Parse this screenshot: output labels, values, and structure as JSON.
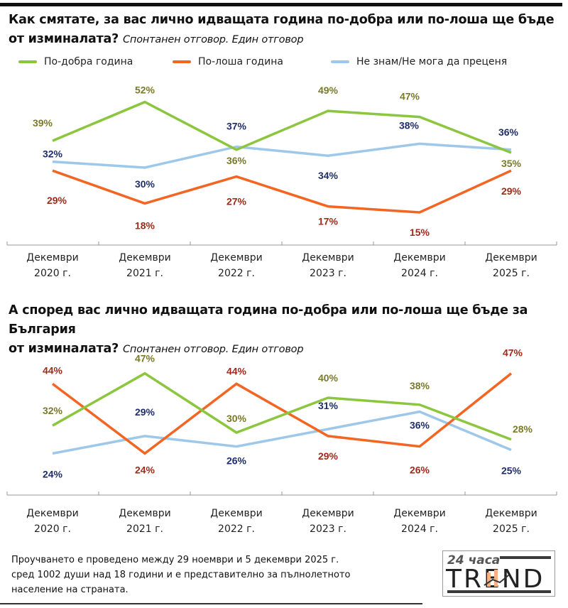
{
  "legend": [
    {
      "label": "По-добра година",
      "color": "#8cc63f"
    },
    {
      "label": "По-лоша година",
      "color": "#f26522"
    },
    {
      "label": "Не знам/Не мога да преценя",
      "color": "#9dc8ea"
    }
  ],
  "label_colors": {
    "better": "#7a7a2a",
    "worse": "#9e2a1a",
    "dontknow": "#1f2e6b"
  },
  "chart_data": [
    {
      "type": "line",
      "title": "Как смятате, за вас лично идващата година по-добра или по-лоша ще бъде от изминалата?",
      "title_line1": "Как смятате, за вас лично идващата година по-добра или по-лоша ще бъде",
      "title_line2": "от изминалата?",
      "subtitle": "Спонтанен отговор. Един отговор",
      "categories": [
        [
          "Декември",
          "2020 г."
        ],
        [
          "Декември",
          "2021 г."
        ],
        [
          "Декември",
          "2022 г."
        ],
        [
          "Декември",
          "2023 г."
        ],
        [
          "Декември",
          "2024 г."
        ],
        [
          "Декември",
          "2025 г."
        ]
      ],
      "series": [
        {
          "name": "По-добра година",
          "key": "better",
          "values": [
            39,
            52,
            36,
            49,
            47,
            35
          ]
        },
        {
          "name": "По-лоша година",
          "key": "worse",
          "values": [
            29,
            18,
            27,
            17,
            15,
            29
          ]
        },
        {
          "name": "Не знам/Не мога да преценя",
          "key": "dontknow",
          "values": [
            32,
            30,
            37,
            34,
            38,
            36
          ]
        }
      ],
      "unit": "%",
      "legend": "top",
      "grid": false
    },
    {
      "type": "line",
      "title": "А според вас лично идващата година по-добра или по-лоша ще бъде за България от изминалата?",
      "title_line1": "А според вас лично идващата година по-добра или по-лоша ще бъде за България",
      "title_line2": "от изминалата?",
      "subtitle": "Спонтанен отговор. Един отговор",
      "categories": [
        [
          "Декември",
          "2020 г."
        ],
        [
          "Декември",
          "2021 г."
        ],
        [
          "Декември",
          "2022 г."
        ],
        [
          "Декември",
          "2023 г."
        ],
        [
          "Декември",
          "2024 г."
        ],
        [
          "Декември",
          "2025 г."
        ]
      ],
      "series": [
        {
          "name": "По-добра година",
          "key": "better",
          "values": [
            32,
            47,
            30,
            40,
            38,
            28
          ]
        },
        {
          "name": "По-лоша година",
          "key": "worse",
          "values": [
            44,
            24,
            44,
            29,
            26,
            47
          ]
        },
        {
          "name": "Не знам/Не мога да преценя",
          "key": "dontknow",
          "values": [
            24,
            29,
            26,
            31,
            36,
            25
          ]
        }
      ],
      "unit": "%",
      "legend": "none",
      "grid": false
    }
  ],
  "footnote": {
    "line1": "Проучването е проведено между 29 ноември и 5 декември 2025 г.",
    "line2": "сред 1002 души над 18 години и е представително за пълнолетното",
    "line3": "население на страната."
  },
  "logo": {
    "top": "24 часа",
    "main": "TREND"
  }
}
